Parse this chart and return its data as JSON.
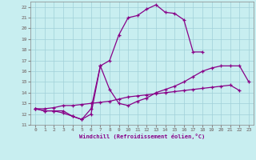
{
  "xlabel": "Windchill (Refroidissement éolien,°C)",
  "bg_color": "#c8eef0",
  "grid_color": "#a0d0d8",
  "line_color": "#880088",
  "xlim": [
    -0.5,
    23.5
  ],
  "ylim": [
    11,
    22.5
  ],
  "xticks": [
    0,
    1,
    2,
    3,
    4,
    5,
    6,
    7,
    8,
    9,
    10,
    11,
    12,
    13,
    14,
    15,
    16,
    17,
    18,
    19,
    20,
    21,
    22,
    23
  ],
  "yticks": [
    11,
    12,
    13,
    14,
    15,
    16,
    17,
    18,
    19,
    20,
    21,
    22
  ],
  "curve1_x": [
    0,
    1,
    2,
    3,
    4,
    5,
    6,
    7,
    8,
    9,
    10,
    11,
    12,
    13,
    14,
    15,
    16,
    17,
    18
  ],
  "curve1_y": [
    12.5,
    12.3,
    12.3,
    12.3,
    11.8,
    11.5,
    12.0,
    16.5,
    17.0,
    19.4,
    21.0,
    21.2,
    21.8,
    22.2,
    21.5,
    21.4,
    20.8,
    17.8,
    17.8
  ],
  "curve2_x": [
    0,
    1,
    2,
    3,
    4,
    5,
    6,
    7,
    8,
    9,
    10,
    11,
    12,
    13,
    14,
    15,
    16,
    17,
    18,
    19,
    20,
    21,
    22,
    23
  ],
  "curve2_y": [
    12.5,
    12.3,
    12.3,
    12.1,
    11.8,
    11.5,
    12.5,
    16.5,
    14.3,
    13.0,
    12.8,
    13.2,
    13.5,
    14.0,
    14.3,
    14.6,
    15.0,
    15.5,
    16.0,
    16.3,
    16.5,
    16.5,
    16.5,
    15.0
  ],
  "curve3_x": [
    0,
    1,
    2,
    3,
    4,
    5,
    6,
    7,
    8,
    9,
    10,
    11,
    12,
    13,
    14,
    15,
    16,
    17,
    18,
    19,
    20,
    21,
    22
  ],
  "curve3_y": [
    12.5,
    12.5,
    12.6,
    12.8,
    12.8,
    12.9,
    13.0,
    13.1,
    13.2,
    13.4,
    13.6,
    13.7,
    13.8,
    13.9,
    14.0,
    14.1,
    14.2,
    14.3,
    14.4,
    14.5,
    14.6,
    14.7,
    14.2
  ]
}
